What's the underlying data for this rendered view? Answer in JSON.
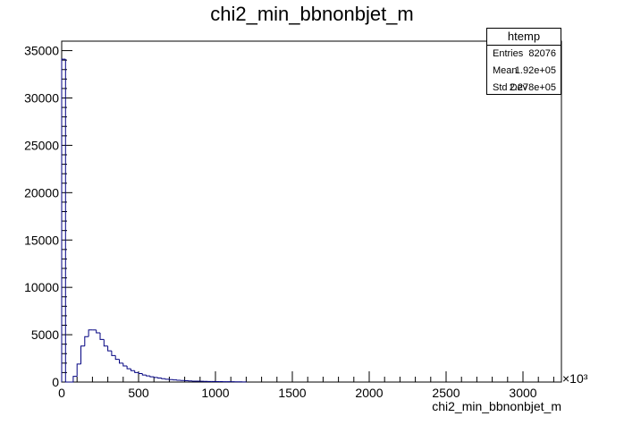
{
  "chart_data": {
    "type": "bar",
    "title": "chi2_min_bbnonbjet_m",
    "xlabel": "chi2_min_bbnonbjet_m",
    "ylabel": "",
    "x_multiplier": "×10³",
    "xlim": [
      0,
      3250
    ],
    "ylim": [
      0,
      36000
    ],
    "x_ticks": [
      0,
      500,
      1000,
      1500,
      2000,
      2500,
      3000
    ],
    "y_ticks": [
      0,
      5000,
      10000,
      15000,
      20000,
      25000,
      30000,
      35000
    ],
    "bin_edges": [
      0,
      25,
      50,
      75,
      100,
      125,
      150,
      175,
      200,
      225,
      250,
      275,
      300,
      325,
      350,
      375,
      400,
      425,
      450,
      475,
      500,
      525,
      550,
      575,
      600,
      625,
      650,
      675,
      700,
      725,
      750,
      775,
      800,
      825,
      850,
      875,
      900,
      925,
      950,
      975,
      1000,
      1025,
      1050,
      1075,
      1100,
      1125,
      1150,
      1175,
      1200
    ],
    "values": [
      34100,
      0,
      0,
      600,
      1900,
      3800,
      4800,
      5500,
      5500,
      5200,
      4500,
      3800,
      3300,
      2800,
      2400,
      2000,
      1700,
      1400,
      1200,
      1000,
      900,
      750,
      650,
      550,
      480,
      420,
      360,
      300,
      260,
      220,
      190,
      160,
      140,
      120,
      100,
      90,
      80,
      70,
      60,
      55,
      50,
      45,
      40,
      35,
      30,
      25,
      20,
      15
    ],
    "line_color": "#000080"
  },
  "stats": {
    "name": "htemp",
    "rows": [
      {
        "label": "Entries",
        "value": "82076"
      },
      {
        "label": "Mean",
        "value": "1.92e+05"
      },
      {
        "label": "Std Dev",
        "value": "2.278e+05"
      }
    ]
  }
}
